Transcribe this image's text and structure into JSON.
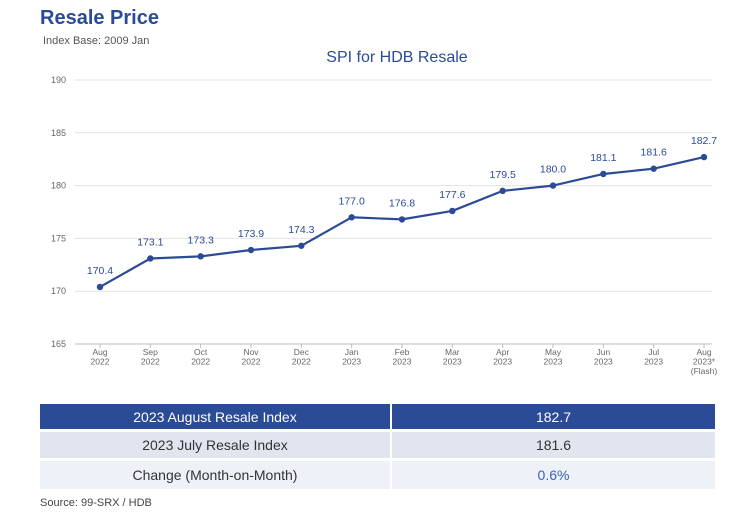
{
  "header": {
    "title": "Resale Price",
    "subtitle": "Index Base: 2009 Jan"
  },
  "chart_data": {
    "type": "line",
    "title": "SPI for HDB Resale",
    "xlabel": "",
    "ylabel": "",
    "ylim": [
      165,
      190
    ],
    "y_ticks": [
      165,
      170,
      175,
      180,
      185,
      190
    ],
    "grid": true,
    "categories": [
      [
        "Aug",
        "2022"
      ],
      [
        "Sep",
        "2022"
      ],
      [
        "Oct",
        "2022"
      ],
      [
        "Nov",
        "2022"
      ],
      [
        "Dec",
        "2022"
      ],
      [
        "Jan",
        "2023"
      ],
      [
        "Feb",
        "2023"
      ],
      [
        "Mar",
        "2023"
      ],
      [
        "Apr",
        "2023"
      ],
      [
        "May",
        "2023"
      ],
      [
        "Jun",
        "2023"
      ],
      [
        "Jul",
        "2023"
      ],
      [
        "Aug",
        "2023*",
        "(Flash)"
      ]
    ],
    "series": [
      {
        "values": [
          170.4,
          173.1,
          173.3,
          173.9,
          174.3,
          177.0,
          176.8,
          177.6,
          179.5,
          180.0,
          181.1,
          181.6,
          182.7
        ],
        "labels": [
          "170.4",
          "173.1",
          "173.3",
          "173.9",
          "174.3",
          "177.0",
          "176.8",
          "177.6",
          "179.5",
          "180.0",
          "181.1",
          "181.6",
          "182.7"
        ],
        "color": "#2b4b96"
      }
    ]
  },
  "summary_table": {
    "rows": [
      {
        "label": "2023 August Resale Index",
        "value": "182.7"
      },
      {
        "label": "2023 July Resale Index",
        "value": "181.6"
      },
      {
        "label": "Change (Month-on-Month)",
        "value": "0.6%"
      }
    ]
  },
  "source": "Source: 99-SRX / HDB",
  "colors": {
    "brand": "#2b4b96",
    "accent": "#3a62b8",
    "grid": "#e2e2e2"
  }
}
